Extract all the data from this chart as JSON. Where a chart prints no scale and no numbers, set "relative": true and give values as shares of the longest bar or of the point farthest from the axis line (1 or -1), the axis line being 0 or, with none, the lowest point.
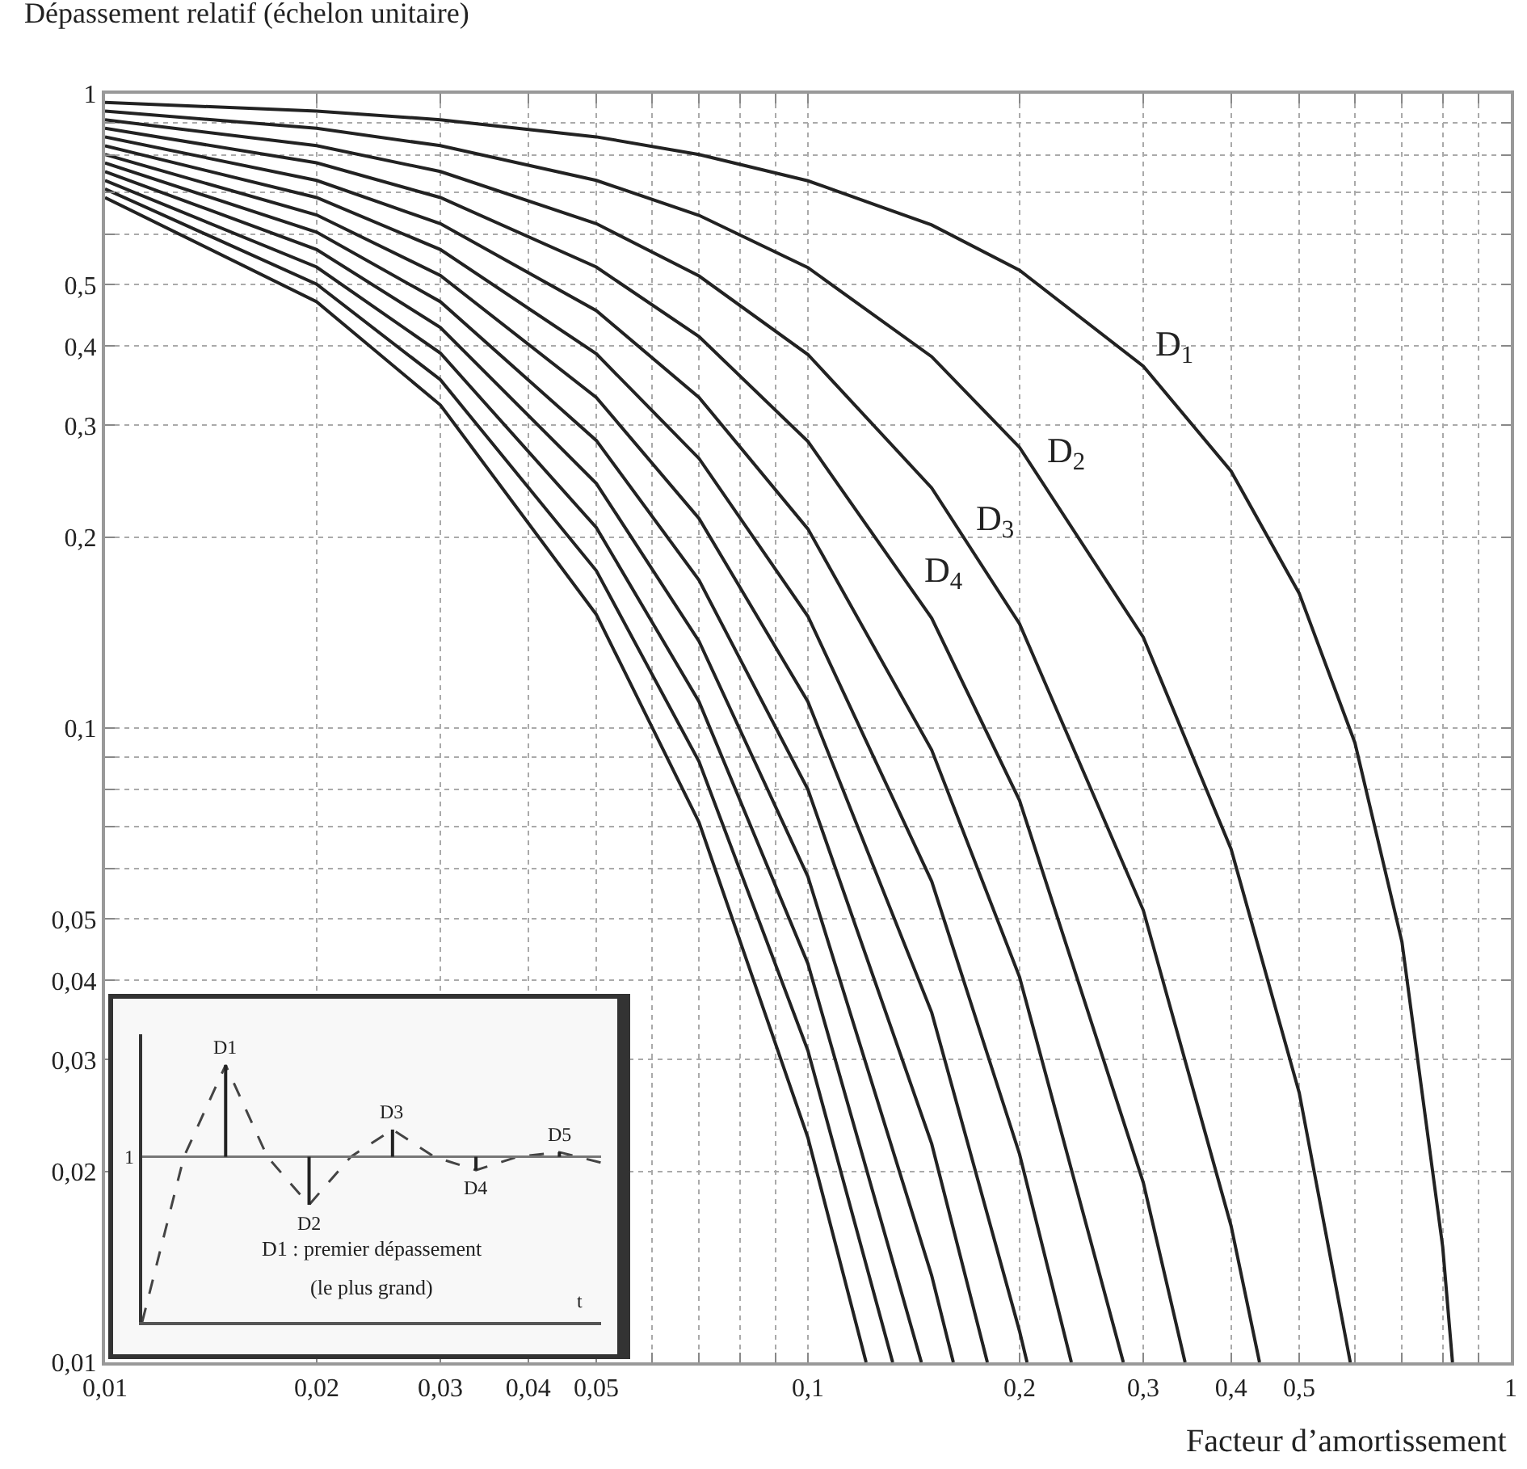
{
  "chart_data": [
    {
      "type": "line",
      "ylabel": "Dépassement relatif (échelon unitaire)",
      "xlabel": "Facteur d’amortissement",
      "log": "xy",
      "grid": true,
      "line_style": "solid",
      "marker": "none",
      "xlim": [
        0.01,
        1
      ],
      "ylim": [
        0.01,
        1
      ],
      "xticks": [
        {
          "value": 0.01,
          "label": "0,01"
        },
        {
          "value": 0.02,
          "label": "0,02"
        },
        {
          "value": 0.03,
          "label": "0,03"
        },
        {
          "value": 0.04,
          "label": "0,04"
        },
        {
          "value": 0.05,
          "label": "0,05"
        },
        {
          "value": 0.06,
          "label": null
        },
        {
          "value": 0.07,
          "label": null
        },
        {
          "value": 0.08,
          "label": null
        },
        {
          "value": 0.09,
          "label": null
        },
        {
          "value": 0.1,
          "label": "0,1"
        },
        {
          "value": 0.2,
          "label": "0,2"
        },
        {
          "value": 0.3,
          "label": "0,3"
        },
        {
          "value": 0.4,
          "label": "0,4"
        },
        {
          "value": 0.5,
          "label": "0,5"
        },
        {
          "value": 0.6,
          "label": null
        },
        {
          "value": 0.7,
          "label": null
        },
        {
          "value": 0.8,
          "label": null
        },
        {
          "value": 0.9,
          "label": null
        },
        1
      ],
      "yticks": [
        {
          "value": 0.01,
          "label": "0,01"
        },
        {
          "value": 0.02,
          "label": "0,02"
        },
        {
          "value": 0.03,
          "label": "0,03"
        },
        {
          "value": 0.04,
          "label": "0,04"
        },
        {
          "value": 0.05,
          "label": "0,05"
        },
        {
          "value": 0.06,
          "label": null
        },
        {
          "value": 0.07,
          "label": null
        },
        {
          "value": 0.08,
          "label": null
        },
        {
          "value": 0.09,
          "label": null
        },
        {
          "value": 0.1,
          "label": "0,1"
        },
        {
          "value": 0.2,
          "label": "0,2"
        },
        {
          "value": 0.3,
          "label": "0,3"
        },
        {
          "value": 0.4,
          "label": "0,4"
        },
        {
          "value": 0.5,
          "label": "0,5"
        },
        {
          "value": 0.6,
          "label": null
        },
        {
          "value": 0.7,
          "label": null
        },
        {
          "value": 0.8,
          "label": null
        },
        {
          "value": 0.9,
          "label": null
        },
        1
      ],
      "series": [
        {
          "name": "D$_{1}$",
          "color": "#222222",
          "x": [
            0.01,
            0.02,
            0.03,
            0.05,
            0.07,
            0.1,
            0.15,
            0.2,
            0.3,
            0.4,
            0.5,
            0.6,
            0.7,
            0.8,
            0.826
          ],
          "values": [
            0.969,
            0.939,
            0.91,
            0.855,
            0.802,
            0.729,
            0.621,
            0.527,
            0.372,
            0.254,
            0.163,
            0.0948,
            0.046,
            0.0152,
            0.01
          ]
        },
        {
          "name": "D$_{2}$",
          "color": "#222222",
          "x": [
            0.01,
            0.02,
            0.03,
            0.05,
            0.07,
            0.1,
            0.15,
            0.2,
            0.3,
            0.4,
            0.5,
            0.591
          ],
          "values": [
            0.939,
            0.882,
            0.828,
            0.73,
            0.643,
            0.532,
            0.385,
            0.277,
            0.139,
            0.0644,
            0.0266,
            0.01
          ]
        },
        {
          "name": "D$_{3}$",
          "color": "#222222",
          "x": [
            0.01,
            0.02,
            0.03,
            0.05,
            0.07,
            0.1,
            0.15,
            0.2,
            0.3,
            0.4,
            0.439
          ],
          "values": [
            0.91,
            0.828,
            0.754,
            0.624,
            0.516,
            0.388,
            0.239,
            0.146,
            0.0516,
            0.0164,
            0.01
          ]
        },
        {
          "name": "D$_{4}$",
          "color": "#222222",
          "x": [
            0.01,
            0.02,
            0.03,
            0.05,
            0.07,
            0.1,
            0.15,
            0.2,
            0.3,
            0.344
          ],
          "values": [
            0.882,
            0.778,
            0.686,
            0.533,
            0.414,
            0.283,
            0.149,
            0.0769,
            0.0192,
            0.01
          ]
        },
        {
          "color": "#222222",
          "x": [
            0.01,
            0.02,
            0.03,
            0.05,
            0.07,
            0.1,
            0.15,
            0.2,
            0.281
          ],
          "values": [
            0.855,
            0.73,
            0.624,
            0.455,
            0.332,
            0.206,
            0.0923,
            0.0405,
            0.01
          ]
        },
        {
          "color": "#222222",
          "x": [
            0.01,
            0.02,
            0.03,
            0.05,
            0.07,
            0.1,
            0.15,
            0.2,
            0.237
          ],
          "values": [
            0.828,
            0.686,
            0.568,
            0.389,
            0.266,
            0.15,
            0.0573,
            0.0213,
            0.01
          ]
        },
        {
          "color": "#222222",
          "x": [
            0.01,
            0.02,
            0.03,
            0.05,
            0.07,
            0.1,
            0.15,
            0.2,
            0.205
          ],
          "values": [
            0.802,
            0.644,
            0.517,
            0.332,
            0.214,
            0.11,
            0.0356,
            0.0112,
            0.01
          ]
        },
        {
          "color": "#222222",
          "x": [
            0.01,
            0.02,
            0.03,
            0.05,
            0.07,
            0.1,
            0.15,
            0.18
          ],
          "values": [
            0.778,
            0.605,
            0.47,
            0.284,
            0.171,
            0.08,
            0.0221,
            0.01
          ]
        },
        {
          "color": "#222222",
          "x": [
            0.01,
            0.02,
            0.03,
            0.05,
            0.07,
            0.1,
            0.15,
            0.161
          ],
          "values": [
            0.754,
            0.568,
            0.428,
            0.243,
            0.137,
            0.0583,
            0.0137,
            0.01
          ]
        },
        {
          "color": "#222222",
          "x": [
            0.01,
            0.02,
            0.03,
            0.05,
            0.07,
            0.1,
            0.145
          ],
          "values": [
            0.73,
            0.533,
            0.39,
            0.207,
            0.11,
            0.0425,
            0.01
          ]
        },
        {
          "color": "#222222",
          "x": [
            0.01,
            0.02,
            0.03,
            0.05,
            0.07,
            0.1,
            0.132
          ],
          "values": [
            0.708,
            0.501,
            0.354,
            0.177,
            0.0885,
            0.031,
            0.01
          ]
        },
        {
          "color": "#222222",
          "x": [
            0.01,
            0.02,
            0.03,
            0.05,
            0.07,
            0.1,
            0.121
          ],
          "values": [
            0.686,
            0.47,
            0.323,
            0.151,
            0.071,
            0.0226,
            0.01
          ]
        }
      ]
    },
    {
      "type": "line",
      "relative": true,
      "xlabel": "t",
      "line_style": "dashed",
      "marker": "none",
      "categories": [
        null,
        null,
        null,
        null,
        null,
        null,
        null,
        null,
        null,
        null,
        null,
        null
      ],
      "series": [
        {
          "color": "#444444",
          "values": [
            0,
            0.643,
            1,
            0.643,
            0.456,
            0.643,
            0.749,
            0.643,
            0.591,
            0.643,
            0.661,
            0.62
          ]
        }
      ],
      "ref_lines": [
        {
          "axis": "y",
          "value": 0.643,
          "label": "1",
          "color": "#777777"
        }
      ],
      "annotations": [
        "D1",
        "D2",
        "D3",
        "D4",
        "D5",
        "D1 : premier dépassement",
        "(le plus grand)"
      ]
    }
  ]
}
